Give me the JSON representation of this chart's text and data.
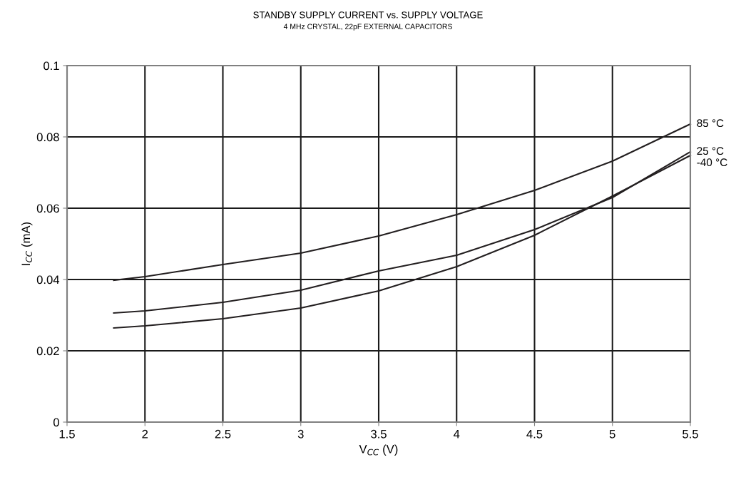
{
  "chart_data": {
    "type": "line",
    "title": "STANDBY SUPPLY CURRENT vs. SUPPLY VOLTAGE",
    "subtitle": "4 MHz CRYSTAL, 22pF EXTERNAL CAPACITORS",
    "xlabel": "V$_{CC}$ (V)",
    "ylabel": "I$_{CC}$ (mA)",
    "x": [
      1.8,
      2.0,
      2.5,
      3.0,
      3.5,
      4.0,
      4.5,
      5.0,
      5.5
    ],
    "series": [
      {
        "name": "85 °C",
        "color": "#231f20",
        "values": [
          0.0398,
          0.0408,
          0.0442,
          0.0474,
          0.0522,
          0.0582,
          0.065,
          0.0732,
          0.0836
        ]
      },
      {
        "name": "25 °C",
        "color": "#231f20",
        "values": [
          0.0306,
          0.0312,
          0.0336,
          0.037,
          0.0424,
          0.0468,
          0.054,
          0.063,
          0.0758
        ]
      },
      {
        "name": "-40 °C",
        "color": "#231f20",
        "values": [
          0.0264,
          0.027,
          0.029,
          0.032,
          0.0368,
          0.0436,
          0.0524,
          0.0634,
          0.0748
        ]
      }
    ],
    "xlim": [
      1.5,
      5.5
    ],
    "xticks": [
      1.5,
      2,
      2.5,
      3,
      3.5,
      4,
      4.5,
      5,
      5.5
    ],
    "ylim": [
      0,
      0.1
    ],
    "yticks": [
      0,
      0.02,
      0.04,
      0.06,
      0.08,
      0.1
    ],
    "grid": true,
    "legend": false,
    "marker": "none",
    "line_style": "solid"
  }
}
